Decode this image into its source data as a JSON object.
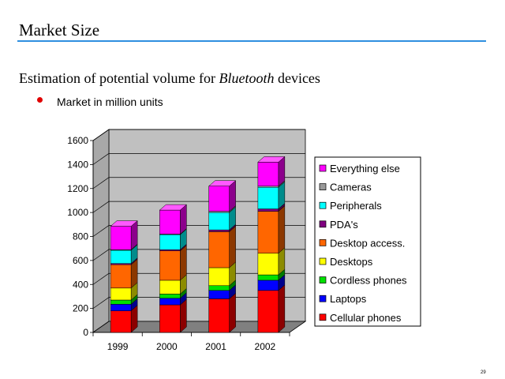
{
  "slide": {
    "title": "Market Size",
    "subtitle_lead": "Estimation of potential volume for ",
    "subtitle_emph": "Bluetooth",
    "subtitle_tail": " devices",
    "bullet": "Market in million units",
    "page_number": "29"
  },
  "chart_data": {
    "type": "bar",
    "stacked": true,
    "style": "3d",
    "categories": [
      "1999",
      "2000",
      "2001",
      "2002"
    ],
    "ylim": [
      0,
      1600
    ],
    "yticks": [
      0,
      200,
      400,
      600,
      800,
      1000,
      1200,
      1400,
      1600
    ],
    "grid": true,
    "legend_position": "right",
    "series": [
      {
        "name": "Cellular phones",
        "color": "#ff0000",
        "values": [
          180,
          230,
          280,
          350
        ]
      },
      {
        "name": "Laptops",
        "color": "#0000ff",
        "values": [
          55,
          55,
          70,
          85
        ]
      },
      {
        "name": "Cordless phones",
        "color": "#00e000",
        "values": [
          35,
          35,
          40,
          45
        ]
      },
      {
        "name": "Desktops",
        "color": "#ffff00",
        "values": [
          100,
          115,
          150,
          180
        ]
      },
      {
        "name": "Desktop access.",
        "color": "#ff6600",
        "values": [
          195,
          245,
          300,
          350
        ]
      },
      {
        "name": "PDA's",
        "color": "#800080",
        "values": [
          10,
          10,
          15,
          20
        ]
      },
      {
        "name": "Peripherals",
        "color": "#00ffff",
        "values": [
          110,
          125,
          145,
          180
        ]
      },
      {
        "name": "Cameras",
        "color": "#999999",
        "values": [
          5,
          5,
          10,
          10
        ]
      },
      {
        "name": "Everything else",
        "color": "#ff00ff",
        "values": [
          195,
          200,
          210,
          200
        ]
      }
    ]
  }
}
